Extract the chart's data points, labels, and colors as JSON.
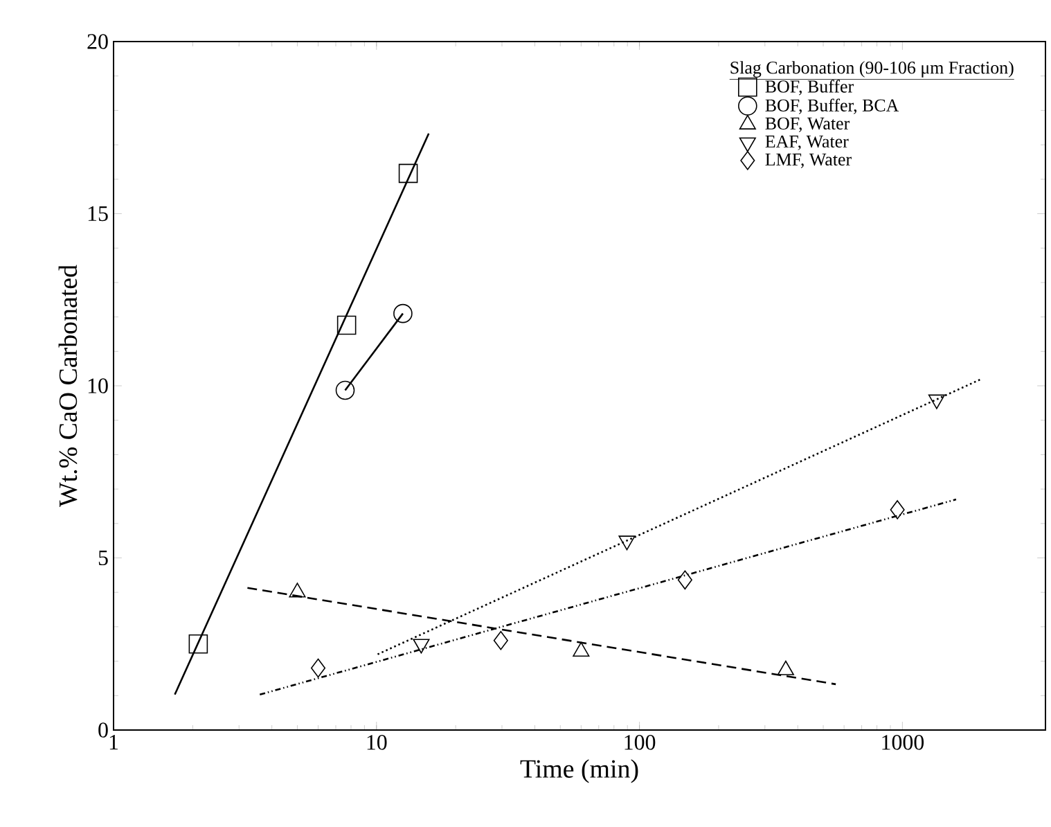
{
  "chart_data": {
    "type": "scatter",
    "xlabel": "Time (min)",
    "ylabel": "Wt.% CaO Carbonated",
    "legend_title": "Slag Carbonation (90-106 μm Fraction)",
    "log": "x",
    "xlim": [
      1,
      3500
    ],
    "xticks": [
      1,
      10,
      100,
      1000
    ],
    "ylim": [
      0,
      20
    ],
    "yticks": [
      0,
      5,
      10,
      15,
      20
    ],
    "grid": false,
    "legend": "top right",
    "series": [
      {
        "name": "BOF, Buffer",
        "marker": "square",
        "color": "#000000",
        "x": [
          2.1,
          7.7,
          13.2
        ],
        "values": [
          2.5,
          11.76,
          16.17
        ]
      },
      {
        "name": "BOF, Buffer, BCA",
        "marker": "circle",
        "color": "#000000",
        "x": [
          7.6,
          12.6
        ],
        "values": [
          9.87,
          12.1
        ]
      },
      {
        "name": "BOF, Water",
        "marker": "triangle",
        "color": "#000000",
        "x": [
          5.0,
          60,
          360
        ],
        "values": [
          4.0,
          2.28,
          1.74
        ]
      },
      {
        "name": "EAF, Water",
        "marker": "triangle_down",
        "color": "#000000",
        "x": [
          14.8,
          89.6,
          1350
        ],
        "values": [
          2.5,
          5.5,
          9.6
        ]
      },
      {
        "name": "LMF, Water",
        "marker": "diamond",
        "color": "#000000",
        "x": [
          6.0,
          29.7,
          149,
          957
        ],
        "values": [
          1.8,
          2.6,
          4.36,
          6.4
        ]
      },
      {
        "type": "line",
        "line_style": "solid",
        "color": "#000000",
        "x": [
          1.71,
          15.8
        ],
        "values": [
          1.03,
          17.33
        ]
      },
      {
        "type": "line",
        "line_style": "solid",
        "color": "#000000",
        "x": [
          7.6,
          12.6
        ],
        "values": [
          9.87,
          12.1
        ]
      },
      {
        "type": "line",
        "line_style": "dashed",
        "color": "#000000",
        "x": [
          3.23,
          558
        ],
        "values": [
          4.13,
          1.33
        ]
      },
      {
        "type": "line",
        "line_style": "dotted",
        "color": "#000000",
        "x": [
          10.1,
          2000
        ],
        "values": [
          2.2,
          10.2
        ]
      },
      {
        "type": "line",
        "line_style": "dashdotdot",
        "color": "#000000",
        "x": [
          3.6,
          1600
        ],
        "values": [
          1.03,
          6.7
        ]
      }
    ]
  }
}
